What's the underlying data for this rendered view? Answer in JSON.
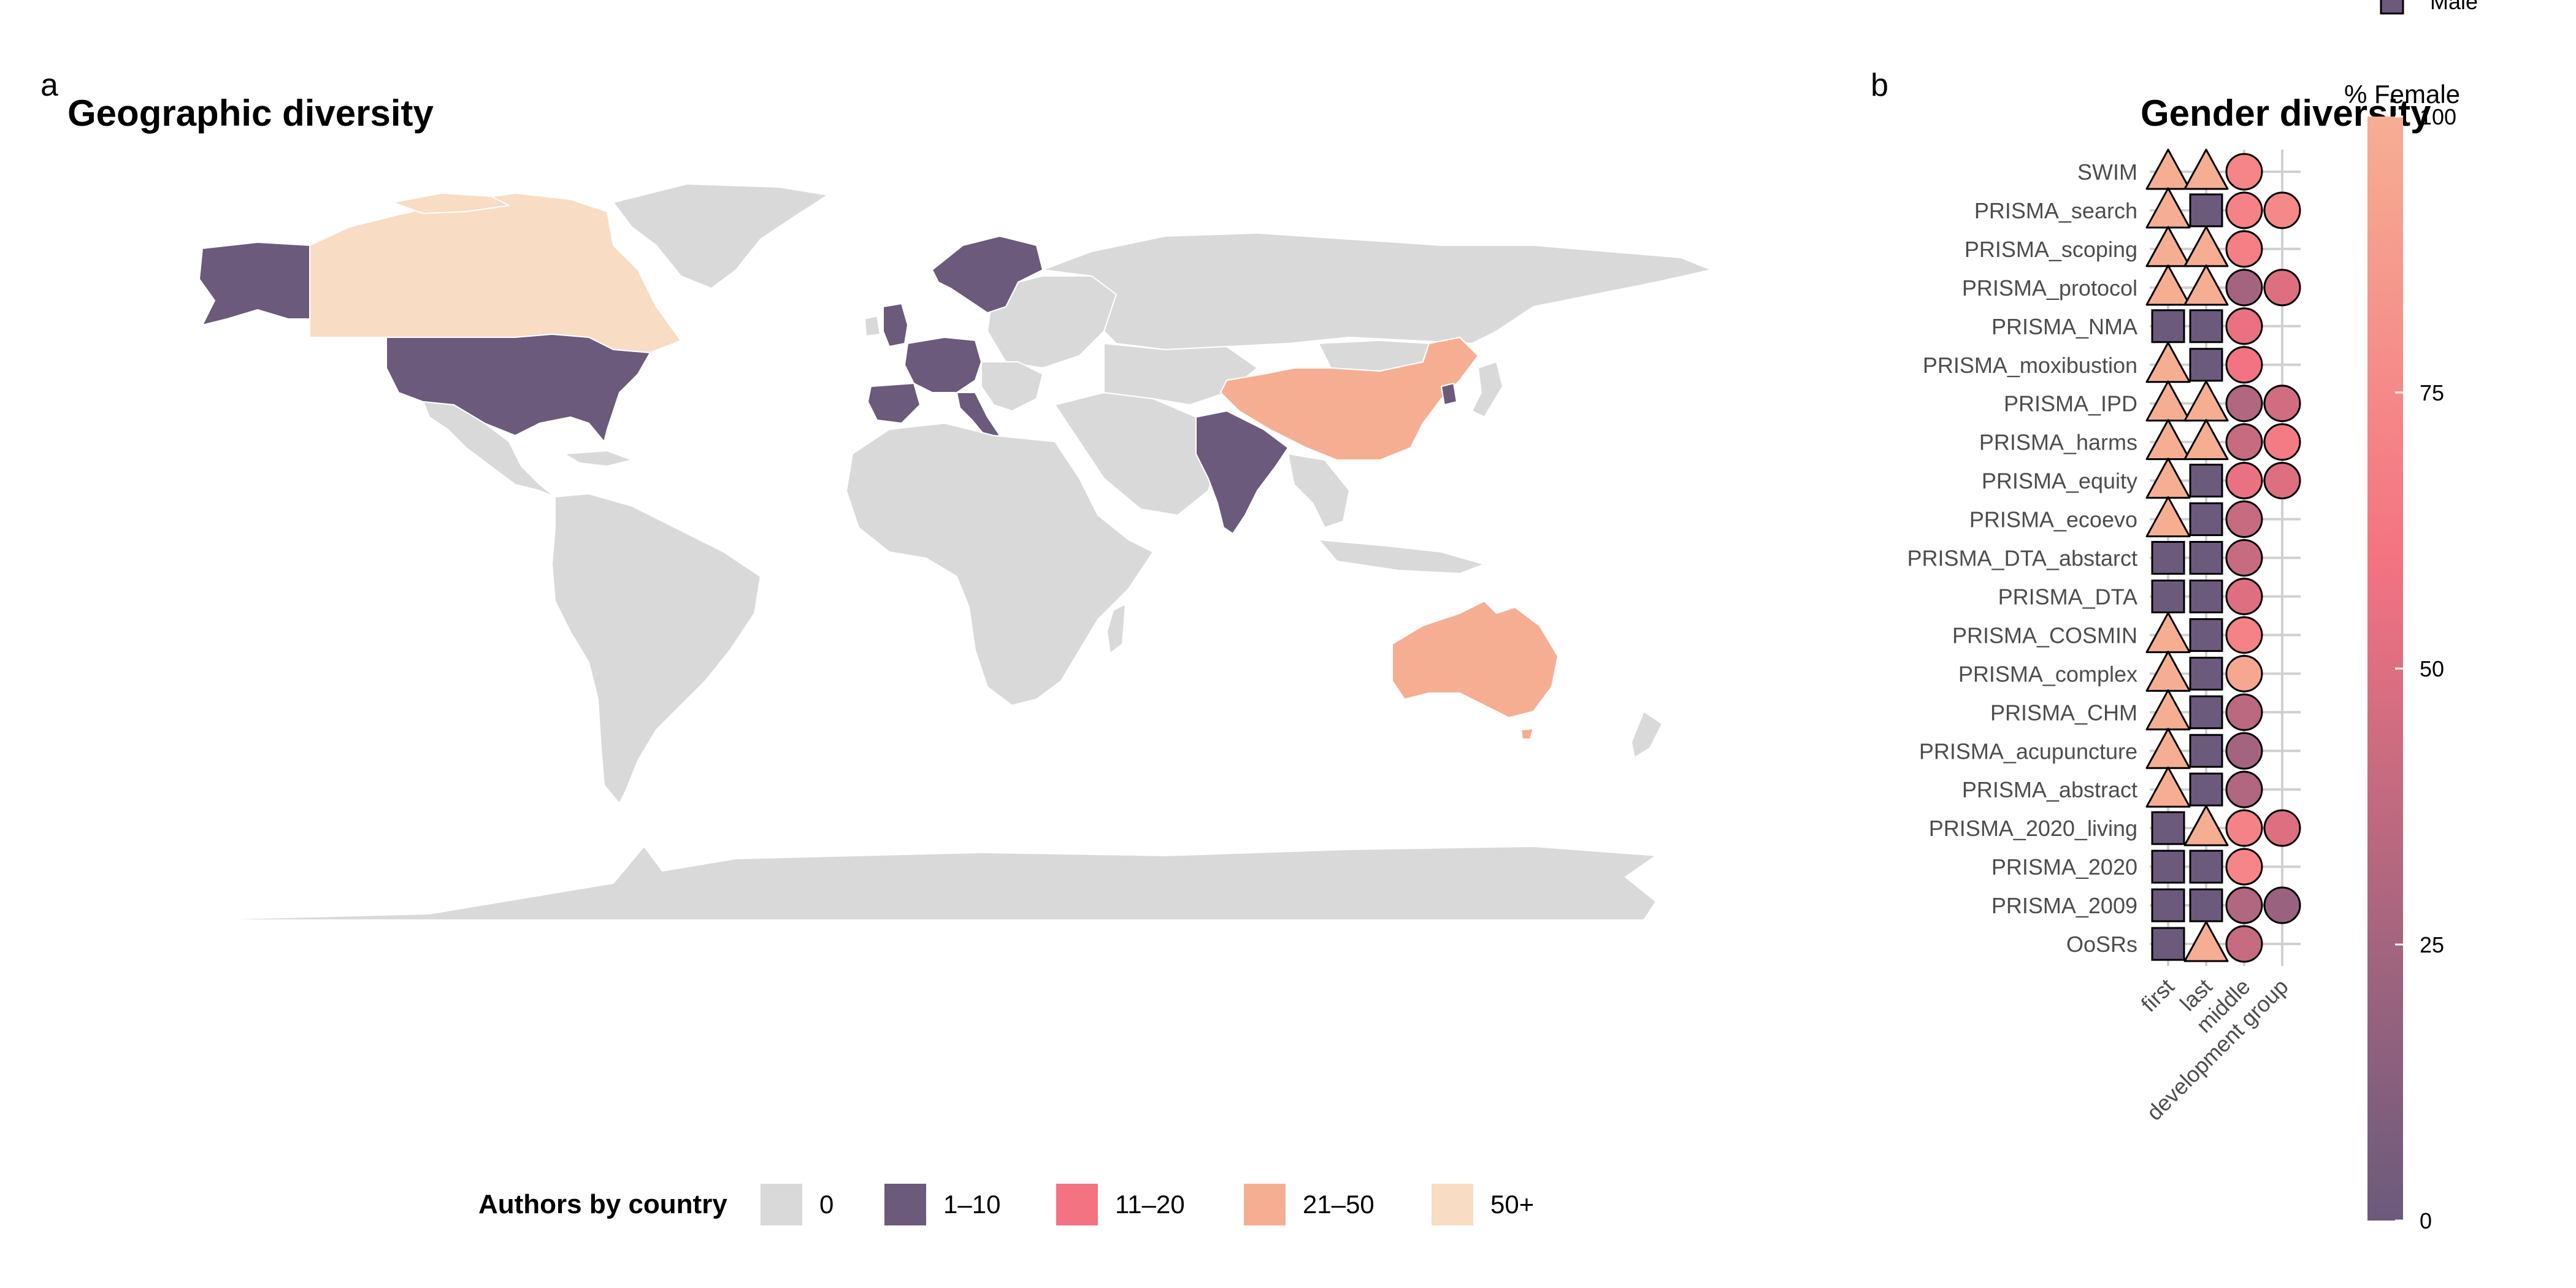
{
  "panel_a": {
    "tag": "a",
    "title": "Geographic diversity",
    "legend": {
      "title": "Authors by country",
      "entries": [
        {
          "label": "0",
          "color": "#d9d9d9"
        },
        {
          "label": "1–10",
          "color": "#6b5a7c"
        },
        {
          "label": "11–20",
          "color": "#f47382"
        },
        {
          "label": "21–50",
          "color": "#f6ae93"
        },
        {
          "label": "50+",
          "color": "#f8dcc4"
        }
      ]
    }
  },
  "panel_b": {
    "tag": "b",
    "title": "Gender diversity",
    "shape_legend_label": "Male",
    "colorbar": {
      "title": "% Female",
      "ticks": [
        "0",
        "25",
        "50",
        "75",
        "100"
      ],
      "low_color": "#6b5a7c",
      "mid_color": "#f47382",
      "high_color": "#f6ae93"
    }
  },
  "chart_data": [
    {
      "type": "choropleth",
      "title": "Geographic diversity",
      "legend_title": "Authors by country",
      "bins": [
        "0",
        "1–10",
        "11–20",
        "21–50",
        "50+"
      ],
      "countries": [
        {
          "name": "Canada",
          "bin": "50+"
        },
        {
          "name": "United States",
          "bin": "1–10"
        },
        {
          "name": "United Kingdom",
          "bin": "1–10"
        },
        {
          "name": "France",
          "bin": "1–10"
        },
        {
          "name": "Spain",
          "bin": "1–10"
        },
        {
          "name": "Germany",
          "bin": "1–10"
        },
        {
          "name": "Italy",
          "bin": "1–10"
        },
        {
          "name": "Norway",
          "bin": "1–10"
        },
        {
          "name": "Sweden",
          "bin": "1–10"
        },
        {
          "name": "Finland",
          "bin": "1–10"
        },
        {
          "name": "India",
          "bin": "1–10"
        },
        {
          "name": "South Korea",
          "bin": "1–10"
        },
        {
          "name": "China",
          "bin": "21–50"
        },
        {
          "name": "Australia",
          "bin": "21–50"
        }
      ]
    },
    {
      "type": "dot-matrix",
      "title": "Gender diversity",
      "x_categories": [
        "first",
        "last",
        "middle",
        "development group"
      ],
      "y_categories": [
        "SWIM",
        "PRISMA_search",
        "PRISMA_scoping",
        "PRISMA_protocol",
        "PRISMA_NMA",
        "PRISMA_moxibustion",
        "PRISMA_IPD",
        "PRISMA_harms",
        "PRISMA_equity",
        "PRISMA_ecoevo",
        "PRISMA_DTA_abstarct",
        "PRISMA_DTA",
        "PRISMA_COSMIN",
        "PRISMA_complex",
        "PRISMA_CHM",
        "PRISMA_acupuncture",
        "PRISMA_abstract",
        "PRISMA_2020_living",
        "PRISMA_2020",
        "PRISMA_2009",
        "OoSRs"
      ],
      "color_scale": {
        "title": "% Female",
        "range": [
          0,
          100
        ]
      },
      "rows": [
        {
          "guideline": "SWIM",
          "first": "female",
          "last": "female",
          "middle": 72,
          "development_group": null
        },
        {
          "guideline": "PRISMA_search",
          "first": "female",
          "last": "male",
          "middle": 70,
          "development_group": 75
        },
        {
          "guideline": "PRISMA_scoping",
          "first": "female",
          "last": "female",
          "middle": 68,
          "development_group": null
        },
        {
          "guideline": "PRISMA_protocol",
          "first": "female",
          "last": "female",
          "middle": 25,
          "development_group": 50
        },
        {
          "guideline": "PRISMA_NMA",
          "first": "male",
          "last": "male",
          "middle": 55,
          "development_group": null
        },
        {
          "guideline": "PRISMA_moxibustion",
          "first": "female",
          "last": "male",
          "middle": 60,
          "development_group": null
        },
        {
          "guideline": "PRISMA_IPD",
          "first": "female",
          "last": "female",
          "middle": 30,
          "development_group": 45
        },
        {
          "guideline": "PRISMA_harms",
          "first": "female",
          "last": "female",
          "middle": 40,
          "development_group": 65
        },
        {
          "guideline": "PRISMA_equity",
          "first": "female",
          "last": "male",
          "middle": 55,
          "development_group": 50
        },
        {
          "guideline": "PRISMA_ecoevo",
          "first": "female",
          "last": "male",
          "middle": 40,
          "development_group": null
        },
        {
          "guideline": "PRISMA_DTA_abstarct",
          "first": "male",
          "last": "male",
          "middle": 40,
          "development_group": null
        },
        {
          "guideline": "PRISMA_DTA",
          "first": "male",
          "last": "male",
          "middle": 50,
          "development_group": null
        },
        {
          "guideline": "PRISMA_COSMIN",
          "first": "female",
          "last": "male",
          "middle": 70,
          "development_group": null
        },
        {
          "guideline": "PRISMA_complex",
          "first": "female",
          "last": "male",
          "middle": 95,
          "development_group": null
        },
        {
          "guideline": "PRISMA_CHM",
          "first": "female",
          "last": "male",
          "middle": 35,
          "development_group": null
        },
        {
          "guideline": "PRISMA_acupuncture",
          "first": "female",
          "last": "male",
          "middle": 25,
          "development_group": null
        },
        {
          "guideline": "PRISMA_abstract",
          "first": "female",
          "last": "male",
          "middle": 30,
          "development_group": null
        },
        {
          "guideline": "PRISMA_2020_living",
          "first": "male",
          "last": "female",
          "middle": 70,
          "development_group": 50
        },
        {
          "guideline": "PRISMA_2020",
          "first": "male",
          "last": "male",
          "middle": 72,
          "development_group": null
        },
        {
          "guideline": "PRISMA_2009",
          "first": "male",
          "last": "male",
          "middle": 30,
          "development_group": 20
        },
        {
          "guideline": "OoSRs",
          "first": "male",
          "last": "female",
          "middle": 40,
          "development_group": null
        }
      ]
    }
  ]
}
